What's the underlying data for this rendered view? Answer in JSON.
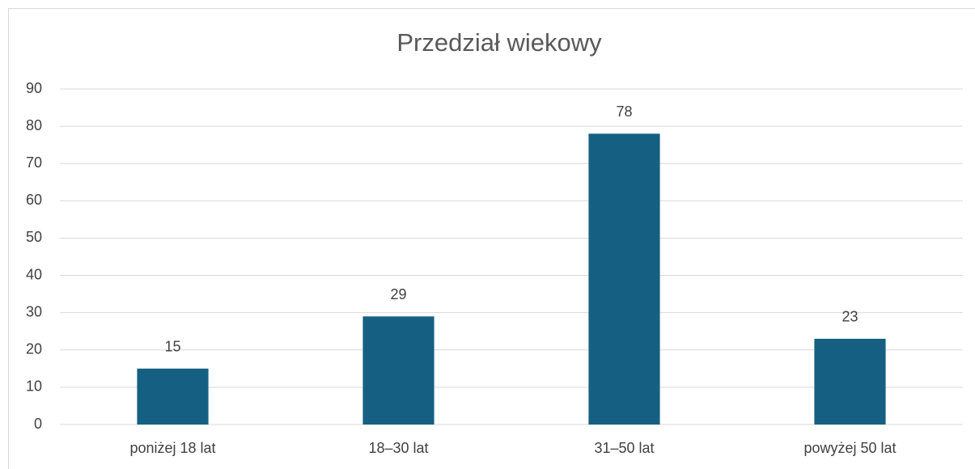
{
  "chart_data": {
    "type": "bar",
    "title": "Przedział wiekowy",
    "categories": [
      "poniżej 18 lat",
      "18–30 lat",
      "31–50 lat",
      "powyżej 50 lat"
    ],
    "values": [
      15,
      29,
      78,
      23
    ],
    "color": "#156082",
    "ylim": [
      0,
      90
    ],
    "yticks": [
      0,
      10,
      20,
      30,
      40,
      50,
      60,
      70,
      80,
      90
    ],
    "grid": true,
    "data_labels": true
  }
}
